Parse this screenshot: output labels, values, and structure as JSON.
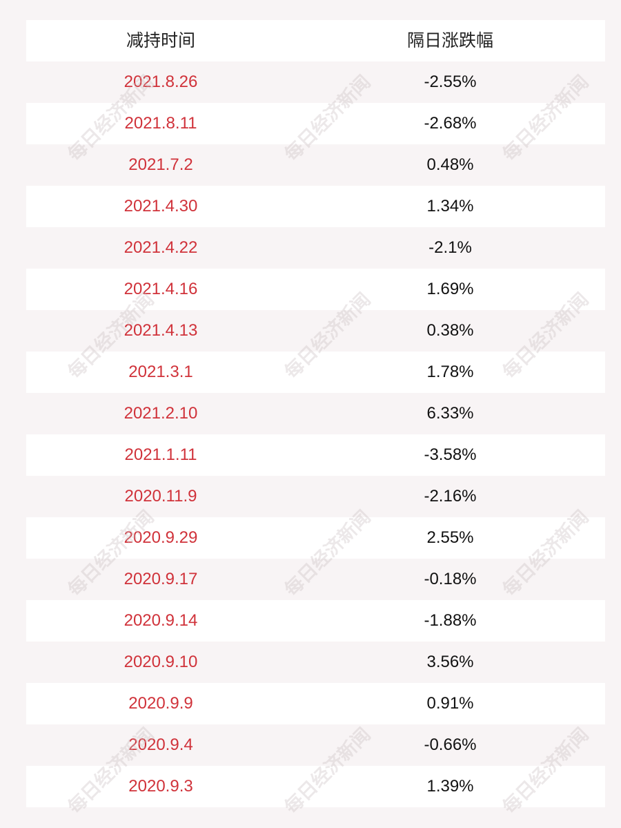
{
  "table": {
    "headers": {
      "date": "减持时间",
      "change": "隔日涨跌幅"
    },
    "rows": [
      {
        "date": "2021.8.26",
        "change": "-2.55%"
      },
      {
        "date": "2021.8.11",
        "change": "-2.68%"
      },
      {
        "date": "2021.7.2",
        "change": "0.48%"
      },
      {
        "date": "2021.4.30",
        "change": "1.34%"
      },
      {
        "date": "2021.4.22",
        "change": "-2.1%"
      },
      {
        "date": "2021.4.16",
        "change": "1.69%"
      },
      {
        "date": "2021.4.13",
        "change": "0.38%"
      },
      {
        "date": "2021.3.1",
        "change": "1.78%"
      },
      {
        "date": "2021.2.10",
        "change": "6.33%"
      },
      {
        "date": "2021.1.11",
        "change": "-3.58%"
      },
      {
        "date": "2020.11.9",
        "change": "-2.16%"
      },
      {
        "date": "2020.9.29",
        "change": "2.55%"
      },
      {
        "date": "2020.9.17",
        "change": "-0.18%"
      },
      {
        "date": "2020.9.14",
        "change": "-1.88%"
      },
      {
        "date": "2020.9.10",
        "change": "3.56%"
      },
      {
        "date": "2020.9.9",
        "change": "0.91%"
      },
      {
        "date": "2020.9.4",
        "change": "-0.66%"
      },
      {
        "date": "2020.9.3",
        "change": "1.39%"
      }
    ]
  },
  "watermark": {
    "text": "每日经济新闻"
  },
  "colors": {
    "date_text": "#d0323a",
    "value_text": "#111111",
    "row_white": "#ffffff",
    "row_tint": "#f8f4f5"
  }
}
